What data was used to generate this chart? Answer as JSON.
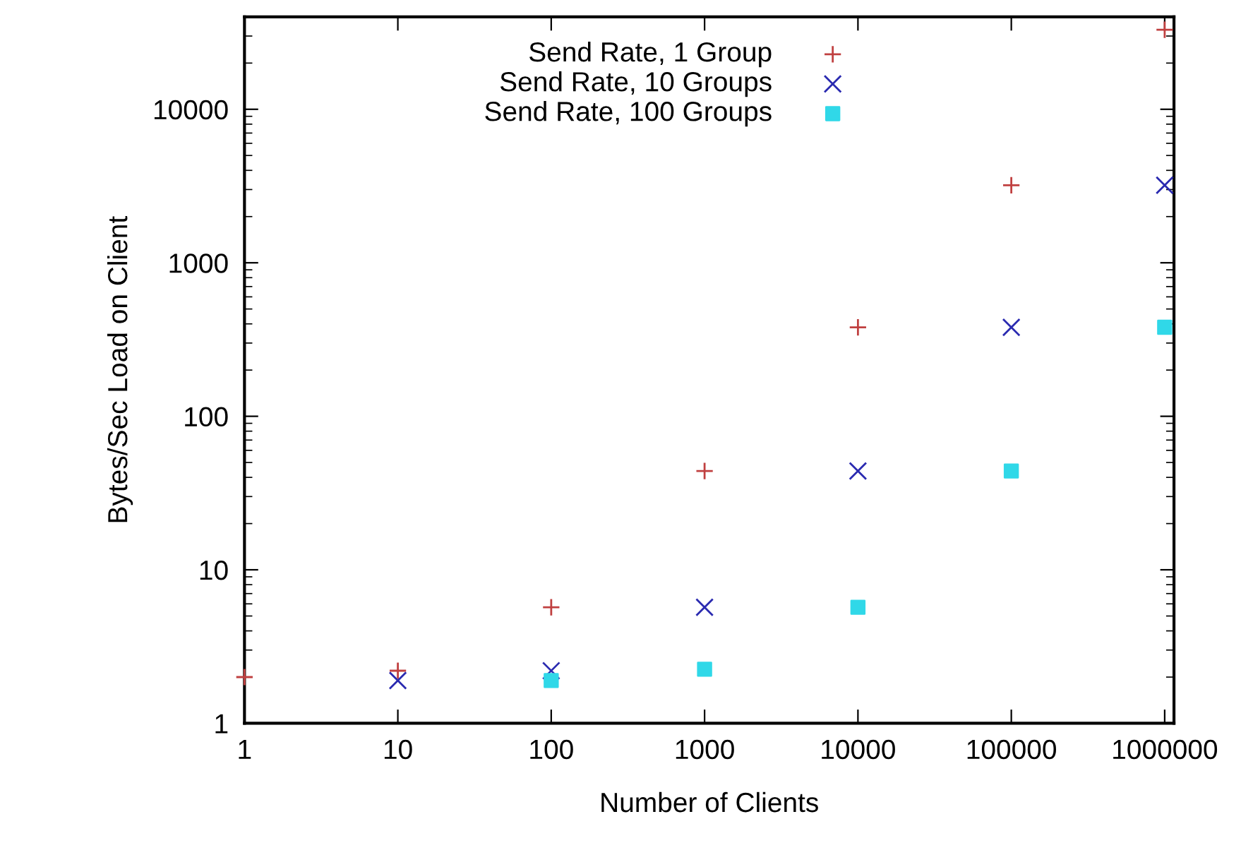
{
  "chart_data": {
    "type": "scatter",
    "xlabel": "Number of Clients",
    "ylabel": "Bytes/Sec Load on Client",
    "log": "xy",
    "xlim": [
      1,
      1150000
    ],
    "ylim": [
      1,
      40000
    ],
    "xticks": [
      1,
      10,
      100,
      1000,
      10000,
      100000,
      1000000
    ],
    "yticks": [
      1,
      10,
      100,
      1000,
      10000
    ],
    "grid": false,
    "legend": "top",
    "series": [
      {
        "name": "Send Rate, 1 Group",
        "color": "#c04040",
        "marker": "plus",
        "x": [
          1,
          10,
          100,
          1000,
          10000,
          100000,
          1000000
        ],
        "values": [
          2,
          2.2,
          5.7,
          44,
          380,
          3200,
          33000
        ]
      },
      {
        "name": "Send Rate, 10 Groups",
        "color": "#2a2ab0",
        "marker": "cross",
        "x": [
          10,
          100,
          1000,
          10000,
          100000,
          1000000
        ],
        "values": [
          1.9,
          2.2,
          5.7,
          44,
          380,
          3200
        ]
      },
      {
        "name": "Send Rate, 100 Groups",
        "color": "#30d8e8",
        "marker": "square",
        "x": [
          100,
          1000,
          10000,
          100000,
          1000000
        ],
        "values": [
          1.9,
          2.25,
          5.7,
          44,
          380
        ]
      }
    ]
  }
}
